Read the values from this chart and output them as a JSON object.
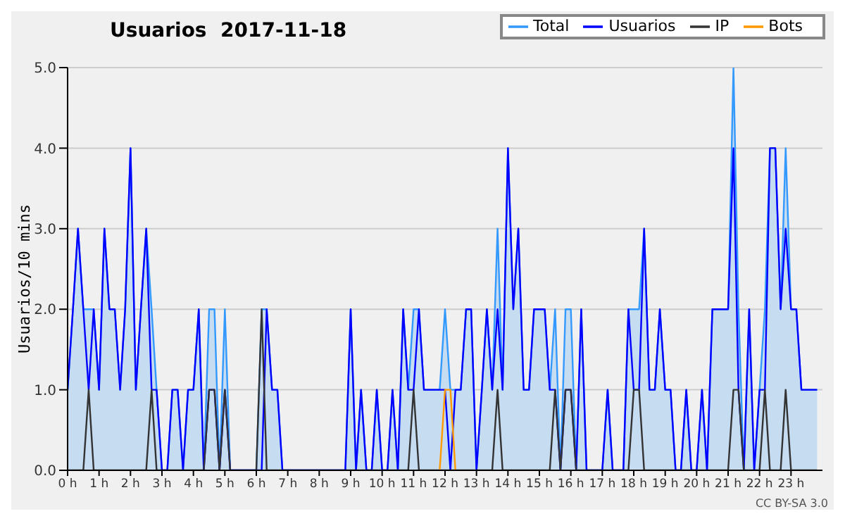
{
  "chart_data": {
    "type": "line",
    "title": "Usuarios  2017-11-18",
    "ylabel": "Usuarios/10 mins",
    "x": [
      0,
      0.17,
      0.33,
      0.5,
      0.67,
      0.83,
      1,
      1.17,
      1.33,
      1.5,
      1.67,
      1.83,
      2,
      2.17,
      2.33,
      2.5,
      2.67,
      2.83,
      3,
      3.17,
      3.33,
      3.5,
      3.67,
      3.83,
      4,
      4.17,
      4.33,
      4.5,
      4.67,
      4.83,
      5,
      5.17,
      5.33,
      5.5,
      5.67,
      5.83,
      6,
      6.17,
      6.33,
      6.5,
      6.67,
      6.83,
      7,
      7.17,
      7.33,
      7.5,
      7.67,
      7.83,
      8,
      8.17,
      8.33,
      8.5,
      8.67,
      8.83,
      9,
      9.17,
      9.33,
      9.5,
      9.67,
      9.83,
      10,
      10.17,
      10.33,
      10.5,
      10.67,
      10.83,
      11,
      11.17,
      11.33,
      11.5,
      11.67,
      11.83,
      12,
      12.17,
      12.33,
      12.5,
      12.67,
      12.83,
      13,
      13.17,
      13.33,
      13.5,
      13.67,
      13.83,
      14,
      14.17,
      14.33,
      14.5,
      14.67,
      14.83,
      15,
      15.17,
      15.33,
      15.5,
      15.67,
      15.83,
      16,
      16.17,
      16.33,
      16.5,
      16.67,
      16.83,
      17,
      17.17,
      17.33,
      17.5,
      17.67,
      17.83,
      18,
      18.17,
      18.33,
      18.5,
      18.67,
      18.83,
      19,
      19.17,
      19.33,
      19.5,
      19.67,
      19.83,
      20,
      20.17,
      20.33,
      20.5,
      20.67,
      20.83,
      21,
      21.17,
      21.33,
      21.5,
      21.67,
      21.83,
      22,
      22.17,
      22.33,
      22.5,
      22.67,
      22.83,
      23,
      23.17,
      23.33,
      23.5,
      23.67,
      23.83
    ],
    "series": [
      {
        "name": "Total",
        "type": "area",
        "color": "#3399ff",
        "values": [
          1,
          2,
          3,
          2,
          2,
          2,
          1,
          3,
          2,
          2,
          1,
          2,
          4,
          1,
          2,
          3,
          2,
          1,
          0,
          0,
          1,
          1,
          0,
          1,
          1,
          2,
          0,
          2,
          2,
          0,
          2,
          0,
          0,
          0,
          0,
          0,
          0,
          2,
          2,
          1,
          1,
          0,
          0,
          0,
          0,
          0,
          0,
          0,
          0,
          0,
          0,
          0,
          0,
          0,
          2,
          0,
          1,
          0,
          0,
          1,
          0,
          0,
          1,
          0,
          2,
          1,
          2,
          2,
          1,
          1,
          1,
          1,
          2,
          1,
          1,
          1,
          2,
          2,
          0,
          1,
          2,
          1,
          3,
          1,
          4,
          2,
          3,
          1,
          1,
          2,
          2,
          2,
          1,
          2,
          0,
          2,
          2,
          0,
          2,
          0,
          0,
          0,
          0,
          1,
          0,
          0,
          0,
          2,
          2,
          2,
          3,
          1,
          1,
          2,
          1,
          1,
          0,
          0,
          1,
          0,
          0,
          1,
          0,
          2,
          2,
          2,
          2,
          5,
          2,
          0,
          2,
          0,
          1,
          2,
          4,
          4,
          2,
          4,
          2,
          2,
          1,
          1,
          1,
          1
        ]
      },
      {
        "name": "Usuarios",
        "color": "#0000ff",
        "values": [
          1,
          2,
          3,
          2,
          1,
          2,
          1,
          3,
          2,
          2,
          1,
          2,
          4,
          1,
          2,
          3,
          1,
          1,
          0,
          0,
          1,
          1,
          0,
          1,
          1,
          2,
          0,
          1,
          1,
          0,
          1,
          0,
          0,
          0,
          0,
          0,
          0,
          0,
          2,
          1,
          1,
          0,
          0,
          0,
          0,
          0,
          0,
          0,
          0,
          0,
          0,
          0,
          0,
          0,
          2,
          0,
          1,
          0,
          0,
          1,
          0,
          0,
          1,
          0,
          2,
          1,
          1,
          2,
          1,
          1,
          1,
          1,
          1,
          0,
          1,
          1,
          2,
          2,
          0,
          1,
          2,
          1,
          2,
          1,
          4,
          2,
          3,
          1,
          1,
          2,
          2,
          2,
          1,
          1,
          0,
          1,
          1,
          0,
          2,
          0,
          0,
          0,
          0,
          1,
          0,
          0,
          0,
          2,
          1,
          1,
          3,
          1,
          1,
          2,
          1,
          1,
          0,
          0,
          1,
          0,
          0,
          1,
          0,
          2,
          2,
          2,
          2,
          4,
          1,
          0,
          2,
          0,
          1,
          1,
          4,
          4,
          2,
          3,
          2,
          2,
          1,
          1,
          1,
          1
        ]
      },
      {
        "name": "IP",
        "color": "#333333",
        "values": [
          0,
          0,
          0,
          0,
          1,
          0,
          0,
          0,
          0,
          0,
          0,
          0,
          0,
          0,
          0,
          0,
          1,
          0,
          0,
          0,
          0,
          0,
          0,
          0,
          0,
          0,
          0,
          1,
          1,
          0,
          1,
          0,
          0,
          0,
          0,
          0,
          0,
          2,
          0,
          0,
          0,
          0,
          0,
          0,
          0,
          0,
          0,
          0,
          0,
          0,
          0,
          0,
          0,
          0,
          0,
          0,
          0,
          0,
          0,
          0,
          0,
          0,
          0,
          0,
          0,
          0,
          1,
          0,
          0,
          0,
          0,
          0,
          0,
          0,
          0,
          0,
          0,
          0,
          0,
          0,
          0,
          0,
          1,
          0,
          0,
          0,
          0,
          0,
          0,
          0,
          0,
          0,
          0,
          1,
          0,
          1,
          1,
          0,
          0,
          0,
          0,
          0,
          0,
          0,
          0,
          0,
          0,
          0,
          1,
          1,
          0,
          0,
          0,
          0,
          0,
          0,
          0,
          0,
          0,
          0,
          0,
          0,
          0,
          0,
          0,
          0,
          0,
          1,
          1,
          0,
          0,
          0,
          0,
          1,
          0,
          0,
          0,
          1,
          0,
          0,
          0,
          0,
          0,
          0
        ]
      },
      {
        "name": "Bots",
        "color": "#ff9900",
        "values": [
          null,
          null,
          null,
          null,
          null,
          null,
          null,
          null,
          null,
          null,
          null,
          null,
          null,
          null,
          null,
          null,
          null,
          null,
          null,
          null,
          null,
          null,
          null,
          null,
          null,
          null,
          null,
          null,
          null,
          null,
          null,
          null,
          null,
          null,
          null,
          null,
          null,
          null,
          null,
          null,
          null,
          null,
          null,
          null,
          null,
          null,
          null,
          null,
          null,
          null,
          null,
          null,
          null,
          null,
          null,
          null,
          null,
          null,
          null,
          null,
          null,
          null,
          null,
          null,
          null,
          null,
          null,
          null,
          null,
          null,
          null,
          0,
          1,
          1,
          0,
          null,
          null,
          null,
          null,
          null,
          null,
          null,
          null,
          null,
          null,
          null,
          null,
          null,
          null,
          null,
          null,
          null,
          null,
          null,
          null,
          null,
          null,
          null,
          null,
          null,
          null,
          null,
          null,
          null,
          null,
          null,
          null,
          null,
          null,
          null,
          null,
          null,
          null,
          null,
          null,
          null,
          null,
          null,
          null,
          null,
          null,
          null,
          null,
          null,
          null,
          null,
          null,
          null,
          null,
          null,
          null,
          null,
          null,
          null,
          null,
          null,
          null,
          null,
          null,
          null,
          null,
          null,
          null,
          null
        ]
      }
    ],
    "xlim": [
      0,
      24
    ],
    "xticks": [
      {
        "value": 0,
        "label": "0 h"
      },
      {
        "value": 1,
        "label": "1 h"
      },
      {
        "value": 2,
        "label": "2 h"
      },
      {
        "value": 3,
        "label": "3 h"
      },
      {
        "value": 4,
        "label": "4 h"
      },
      {
        "value": 5,
        "label": "5 h"
      },
      {
        "value": 6,
        "label": "6 h"
      },
      {
        "value": 7,
        "label": "7 h"
      },
      {
        "value": 8,
        "label": "8 h"
      },
      {
        "value": 9,
        "label": "9 h"
      },
      {
        "value": 10,
        "label": "10 h"
      },
      {
        "value": 11,
        "label": "11 h"
      },
      {
        "value": 12,
        "label": "12 h"
      },
      {
        "value": 13,
        "label": "13 h"
      },
      {
        "value": 14,
        "label": "14 h"
      },
      {
        "value": 15,
        "label": "15 h"
      },
      {
        "value": 16,
        "label": "16 h"
      },
      {
        "value": 17,
        "label": "17 h"
      },
      {
        "value": 18,
        "label": "18 h"
      },
      {
        "value": 19,
        "label": "19 h"
      },
      {
        "value": 20,
        "label": "20 h"
      },
      {
        "value": 21,
        "label": "21 h"
      },
      {
        "value": 22,
        "label": "22 h"
      },
      {
        "value": 23,
        "label": "23 h"
      }
    ],
    "ylim": [
      0,
      5
    ],
    "yticks": [
      {
        "value": 0,
        "label": "0.0"
      },
      {
        "value": 1,
        "label": "1.0"
      },
      {
        "value": 2,
        "label": "2.0"
      },
      {
        "value": 3,
        "label": "3.0"
      },
      {
        "value": 4,
        "label": "4.0"
      },
      {
        "value": 5,
        "label": "5.0"
      }
    ],
    "grid": "y",
    "legend": "top right",
    "annotations": [
      "CC BY-SA 3.0"
    ]
  }
}
